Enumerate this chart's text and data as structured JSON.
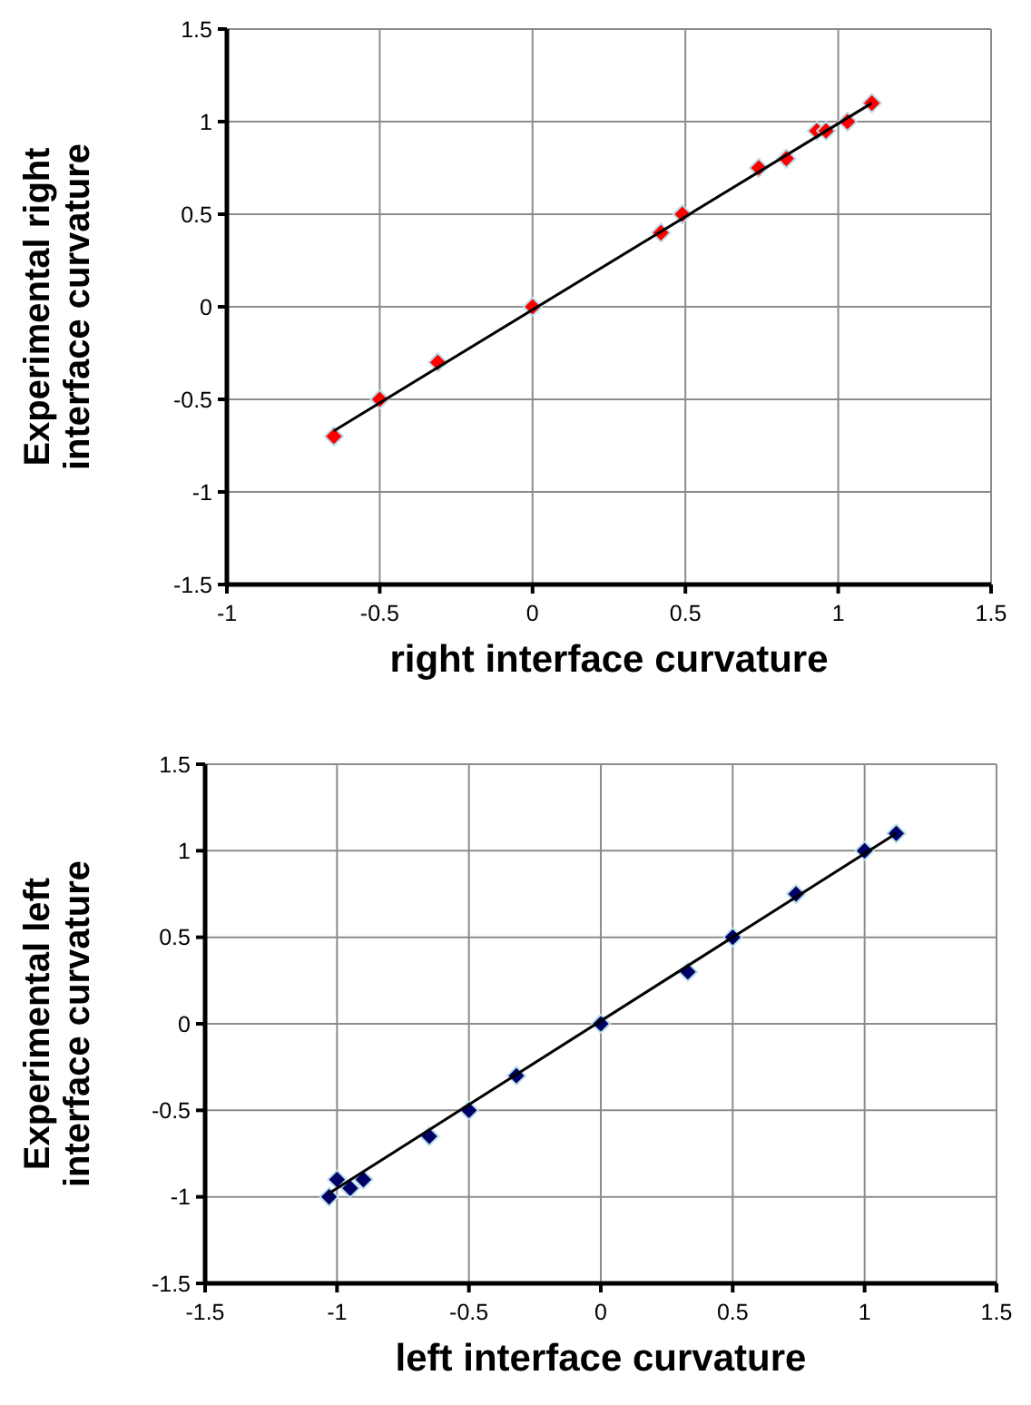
{
  "chart_data": [
    {
      "type": "scatter",
      "xlabel": "right interface curvature",
      "ylabel": "Experimental right interface curvature",
      "xlim": [
        -1,
        1.5
      ],
      "ylim": [
        -1.5,
        1.5
      ],
      "xticks": [
        -1,
        -0.5,
        0,
        0.5,
        1,
        1.5
      ],
      "yticks": [
        -1.5,
        -1,
        -0.5,
        0,
        0.5,
        1,
        1.5
      ],
      "grid": true,
      "marker": "diamond",
      "series": [
        {
          "color": "#ff0000",
          "x": [
            -0.65,
            -0.5,
            -0.31,
            0,
            0.42,
            0.49,
            0.74,
            0.83,
            0.93,
            0.96,
            1.03,
            1.11
          ],
          "values": [
            -0.7,
            -0.5,
            -0.3,
            0,
            0.4,
            0.5,
            0.75,
            0.8,
            0.95,
            0.95,
            1,
            1.1
          ]
        },
        {
          "type": "line",
          "color": "#000000",
          "marker": "none",
          "line_style": "solid",
          "x": [
            -0.65,
            1.11
          ],
          "values": [
            -0.67,
            1.1
          ]
        }
      ]
    },
    {
      "type": "scatter",
      "xlabel": "left interface curvature",
      "ylabel": "Experimental left interface curvature",
      "xlim": [
        -1.5,
        1.5
      ],
      "ylim": [
        -1.5,
        1.5
      ],
      "xticks": [
        -1.5,
        -1,
        -0.5,
        0,
        0.5,
        1,
        1.5
      ],
      "yticks": [
        -1.5,
        -1,
        -0.5,
        0,
        0.5,
        1,
        1.5
      ],
      "grid": true,
      "marker": "diamond",
      "series": [
        {
          "color": "#000066",
          "x": [
            -1.03,
            -1,
            -0.95,
            -0.9,
            -0.65,
            -0.5,
            -0.32,
            0,
            0.33,
            0.5,
            0.74,
            1,
            1.12
          ],
          "values": [
            -1,
            -0.9,
            -0.95,
            -0.9,
            -0.65,
            -0.5,
            -0.3,
            0,
            0.3,
            0.5,
            0.75,
            1,
            1.1
          ]
        },
        {
          "type": "line",
          "color": "#000000",
          "marker": "none",
          "line_style": "solid",
          "x": [
            -1.03,
            1.12
          ],
          "values": [
            -0.98,
            1.1
          ]
        }
      ]
    }
  ]
}
